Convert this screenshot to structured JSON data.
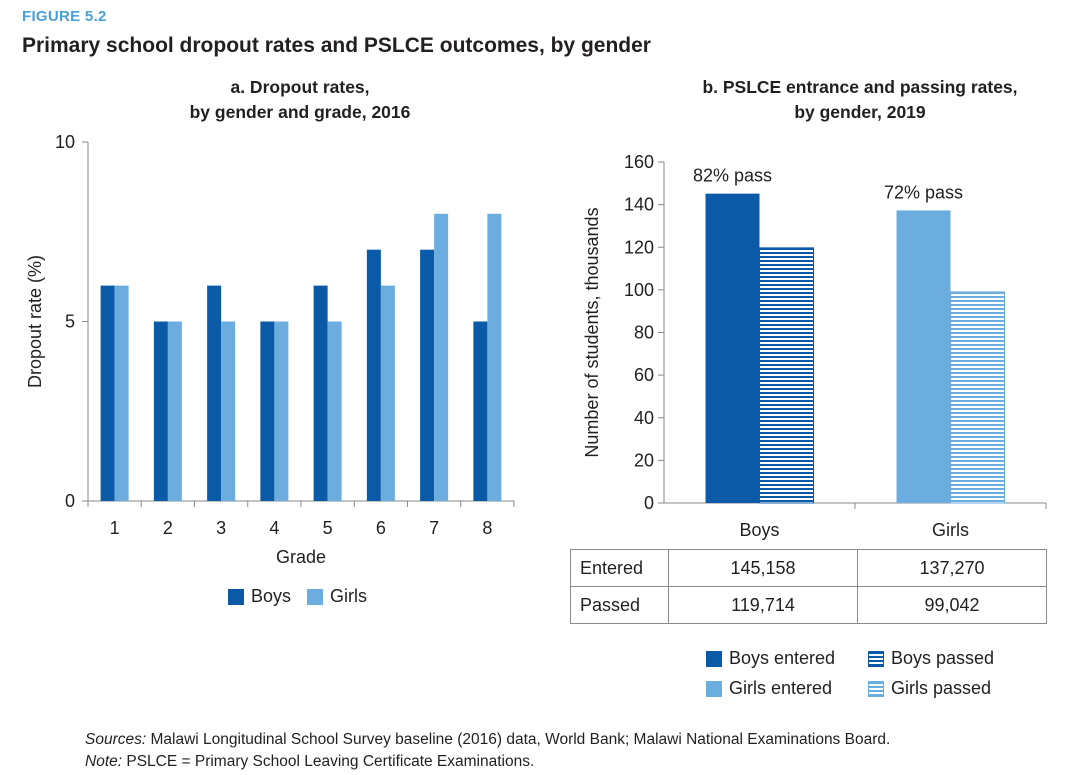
{
  "figure": {
    "label": "FIGURE 5.2",
    "title": "Primary school dropout rates and PSLCE outcomes, by gender"
  },
  "colors": {
    "boys": "#0a5aa8",
    "girls": "#6badde",
    "axis": "#8a8a8a",
    "text": "#231f20"
  },
  "chart_data": [
    {
      "type": "bar",
      "title_lines": [
        "a. Dropout rates,",
        "by gender and grade, 2016"
      ],
      "xlabel": "Grade",
      "ylabel": "Dropout rate (%)",
      "categories": [
        "1",
        "2",
        "3",
        "4",
        "5",
        "6",
        "7",
        "8"
      ],
      "ylim": [
        0,
        10
      ],
      "yticks": [
        "0",
        "5",
        "10"
      ],
      "series": [
        {
          "name": "Boys",
          "values": [
            6,
            5,
            6,
            5,
            6,
            7,
            7,
            5
          ]
        },
        {
          "name": "Girls",
          "values": [
            6,
            5,
            5,
            5,
            5,
            6,
            8,
            8
          ]
        }
      ],
      "legend_position": "bottom",
      "grid": false
    },
    {
      "type": "bar",
      "title_lines": [
        "b. PSLCE entrance and passing rates,",
        "by gender, 2019"
      ],
      "ylabel": "Number of students, thousands",
      "categories": [
        "Boys",
        "Girls"
      ],
      "ylim": [
        0,
        160
      ],
      "yticks": [
        "0",
        "20",
        "40",
        "60",
        "80",
        "100",
        "120",
        "140",
        "160"
      ],
      "series": [
        {
          "name": "Boys entered",
          "values": [
            145.158,
            null
          ]
        },
        {
          "name": "Boys passed",
          "values": [
            119.714,
            null
          ]
        },
        {
          "name": "Girls entered",
          "values": [
            null,
            137.27
          ]
        },
        {
          "name": "Girls passed",
          "values": [
            null,
            99.042
          ]
        }
      ],
      "annotations": [
        "82% pass",
        "72% pass"
      ],
      "table": {
        "columns": [
          "Boys",
          "Girls"
        ],
        "rows": [
          {
            "label": "Entered",
            "values": [
              "145,158",
              "137,270"
            ]
          },
          {
            "label": "Passed",
            "values": [
              "119,714",
              "99,042"
            ]
          }
        ]
      },
      "legend_position": "bottom",
      "grid": false
    }
  ],
  "footnotes": {
    "sources_label": "Sources:",
    "sources_text": " Malawi Longitudinal School Survey baseline (2016) data, World Bank; Malawi National Examinations Board.",
    "note_label": "Note:",
    "note_text": " PSLCE = Primary School Leaving Certificate Examinations."
  }
}
